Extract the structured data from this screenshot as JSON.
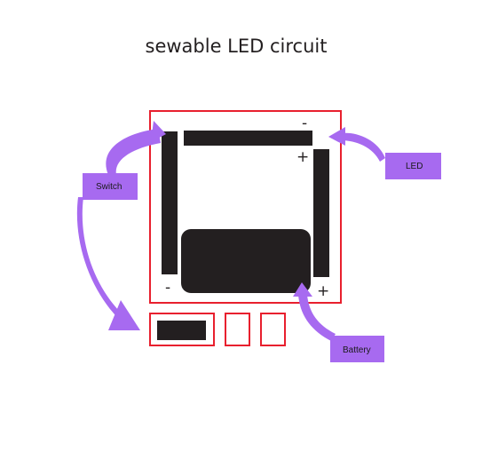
{
  "title": "sewable LED circuit",
  "labels": {
    "switch": "Switch",
    "led": "LED",
    "battery": "Battery"
  },
  "signs": {
    "led_minus": "-",
    "led_plus": "+",
    "battery_minus": "-",
    "battery_plus": "+"
  },
  "colors": {
    "outline": "#e8202e",
    "component": "#231f20",
    "callout": "#a76af0"
  }
}
